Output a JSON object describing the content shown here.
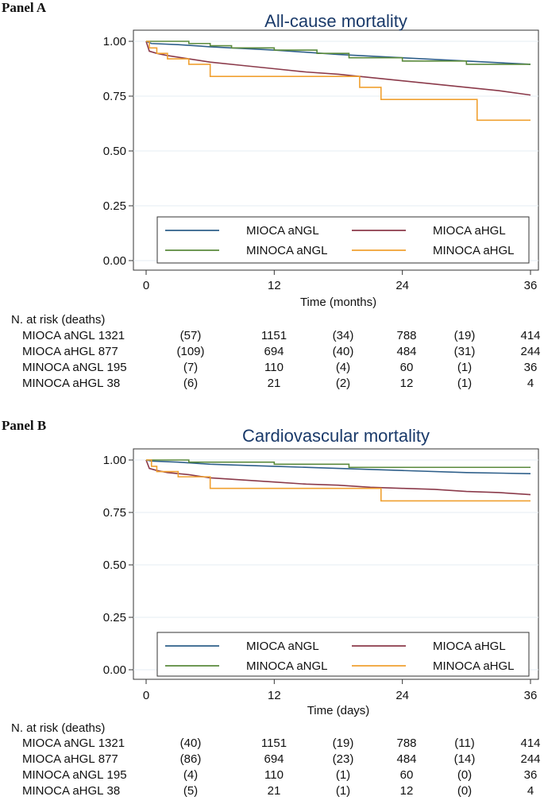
{
  "panels": [
    {
      "label": "Panel A",
      "xlabel": "Time (months)",
      "risk_header": "N. at risk (deaths)"
    },
    {
      "label": "Panel B",
      "xlabel": "Time (days)",
      "risk_header": "N. at risk (deaths)"
    }
  ],
  "colors": {
    "MIOCA aNGL": "#2e5f8a",
    "MIOCA aHGL": "#8b3a4a",
    "MINOCA aNGL": "#5a8a3c",
    "MINOCA aHGL": "#f0a030"
  },
  "chart_data": [
    {
      "type": "line",
      "title": "All-cause mortality",
      "xlabel": "Time (months)",
      "ylabel": "",
      "xlim": [
        0,
        36
      ],
      "ylim": [
        0,
        1.0
      ],
      "xticks": [
        "0",
        "12",
        "24",
        "36"
      ],
      "yticks": [
        "0.00",
        "0.25",
        "0.50",
        "0.75",
        "1.00"
      ],
      "grid": "horizontal",
      "legend": "bottom",
      "series": [
        {
          "name": "MIOCA aNGL",
          "step": false,
          "x": [
            0,
            0.5,
            3,
            6,
            12,
            18,
            24,
            30,
            36
          ],
          "y": [
            1.0,
            0.99,
            0.985,
            0.975,
            0.96,
            0.94,
            0.925,
            0.91,
            0.895
          ]
        },
        {
          "name": "MIOCA aHGL",
          "step": false,
          "x": [
            0,
            0.3,
            1,
            2,
            4,
            6,
            9,
            12,
            15,
            18,
            21,
            24,
            27,
            30,
            33,
            36
          ],
          "y": [
            1.0,
            0.955,
            0.945,
            0.935,
            0.92,
            0.905,
            0.89,
            0.875,
            0.86,
            0.85,
            0.835,
            0.82,
            0.805,
            0.79,
            0.775,
            0.755
          ]
        },
        {
          "name": "MINOCA aNGL",
          "step": true,
          "x": [
            0,
            4,
            6,
            8,
            12,
            16,
            19,
            24,
            30,
            36
          ],
          "y": [
            1.0,
            0.99,
            0.98,
            0.97,
            0.96,
            0.945,
            0.925,
            0.91,
            0.895,
            0.895
          ]
        },
        {
          "name": "MINOCA aHGL",
          "step": true,
          "x": [
            0,
            0.3,
            1,
            2,
            4,
            6,
            20,
            22,
            31,
            36
          ],
          "y": [
            1.0,
            0.97,
            0.945,
            0.92,
            0.895,
            0.84,
            0.79,
            0.735,
            0.64,
            0.64
          ]
        }
      ],
      "at_risk": {
        "header": "N. at risk (deaths)",
        "rows": [
          {
            "group": "MIOCA aNGL",
            "cells": [
              "1321",
              "(57)",
              "1151",
              "(34)",
              "788",
              "(19)",
              "414"
            ]
          },
          {
            "group": "MIOCA aHGL",
            "cells": [
              "877",
              "(109)",
              "694",
              "(40)",
              "484",
              "(31)",
              "244"
            ]
          },
          {
            "group": "MINOCA aNGL",
            "cells": [
              "195",
              "(7)",
              "110",
              "(4)",
              "60",
              "(1)",
              "36"
            ]
          },
          {
            "group": "MINOCA aHGL",
            "cells": [
              "38",
              "(6)",
              "21",
              "(2)",
              "12",
              "(1)",
              "4"
            ]
          }
        ]
      }
    },
    {
      "type": "line",
      "title": "Cardiovascular mortality",
      "xlabel": "Time (days)",
      "ylabel": "",
      "xlim": [
        0,
        36
      ],
      "ylim": [
        0,
        1.0
      ],
      "xticks": [
        "0",
        "12",
        "24",
        "36"
      ],
      "yticks": [
        "0.00",
        "0.25",
        "0.50",
        "0.75",
        "1.00"
      ],
      "grid": "horizontal",
      "legend": "bottom",
      "series": [
        {
          "name": "MIOCA aNGL",
          "step": false,
          "x": [
            0,
            0.5,
            3,
            6,
            12,
            18,
            24,
            30,
            36
          ],
          "y": [
            1.0,
            0.995,
            0.99,
            0.98,
            0.97,
            0.96,
            0.95,
            0.94,
            0.935
          ]
        },
        {
          "name": "MIOCA aHGL",
          "step": false,
          "x": [
            0,
            0.3,
            1,
            2,
            4,
            6,
            9,
            12,
            15,
            18,
            21,
            24,
            27,
            30,
            33,
            36
          ],
          "y": [
            1.0,
            0.96,
            0.95,
            0.94,
            0.93,
            0.915,
            0.905,
            0.895,
            0.885,
            0.88,
            0.87,
            0.865,
            0.86,
            0.85,
            0.845,
            0.835
          ]
        },
        {
          "name": "MINOCA aNGL",
          "step": true,
          "x": [
            0,
            4,
            12,
            19,
            36
          ],
          "y": [
            1.0,
            0.99,
            0.98,
            0.965,
            0.965
          ]
        },
        {
          "name": "MINOCA aHGL",
          "step": true,
          "x": [
            0,
            0.5,
            1,
            3,
            6,
            22,
            36
          ],
          "y": [
            1.0,
            0.97,
            0.945,
            0.92,
            0.865,
            0.805,
            0.805
          ]
        }
      ],
      "at_risk": {
        "header": "N. at risk (deaths)",
        "rows": [
          {
            "group": "MIOCA aNGL",
            "cells": [
              "1321",
              "(40)",
              "1151",
              "(19)",
              "788",
              "(11)",
              "414"
            ]
          },
          {
            "group": "MIOCA aHGL",
            "cells": [
              "877",
              "(86)",
              "694",
              "(23)",
              "484",
              "(14)",
              "244"
            ]
          },
          {
            "group": "MINOCA aNGL",
            "cells": [
              "195",
              "(4)",
              "110",
              "(1)",
              "60",
              "(0)",
              "36"
            ]
          },
          {
            "group": "MINOCA aHGL",
            "cells": [
              "38",
              "(5)",
              "21",
              "(1)",
              "12",
              "(0)",
              "4"
            ]
          }
        ]
      }
    }
  ]
}
